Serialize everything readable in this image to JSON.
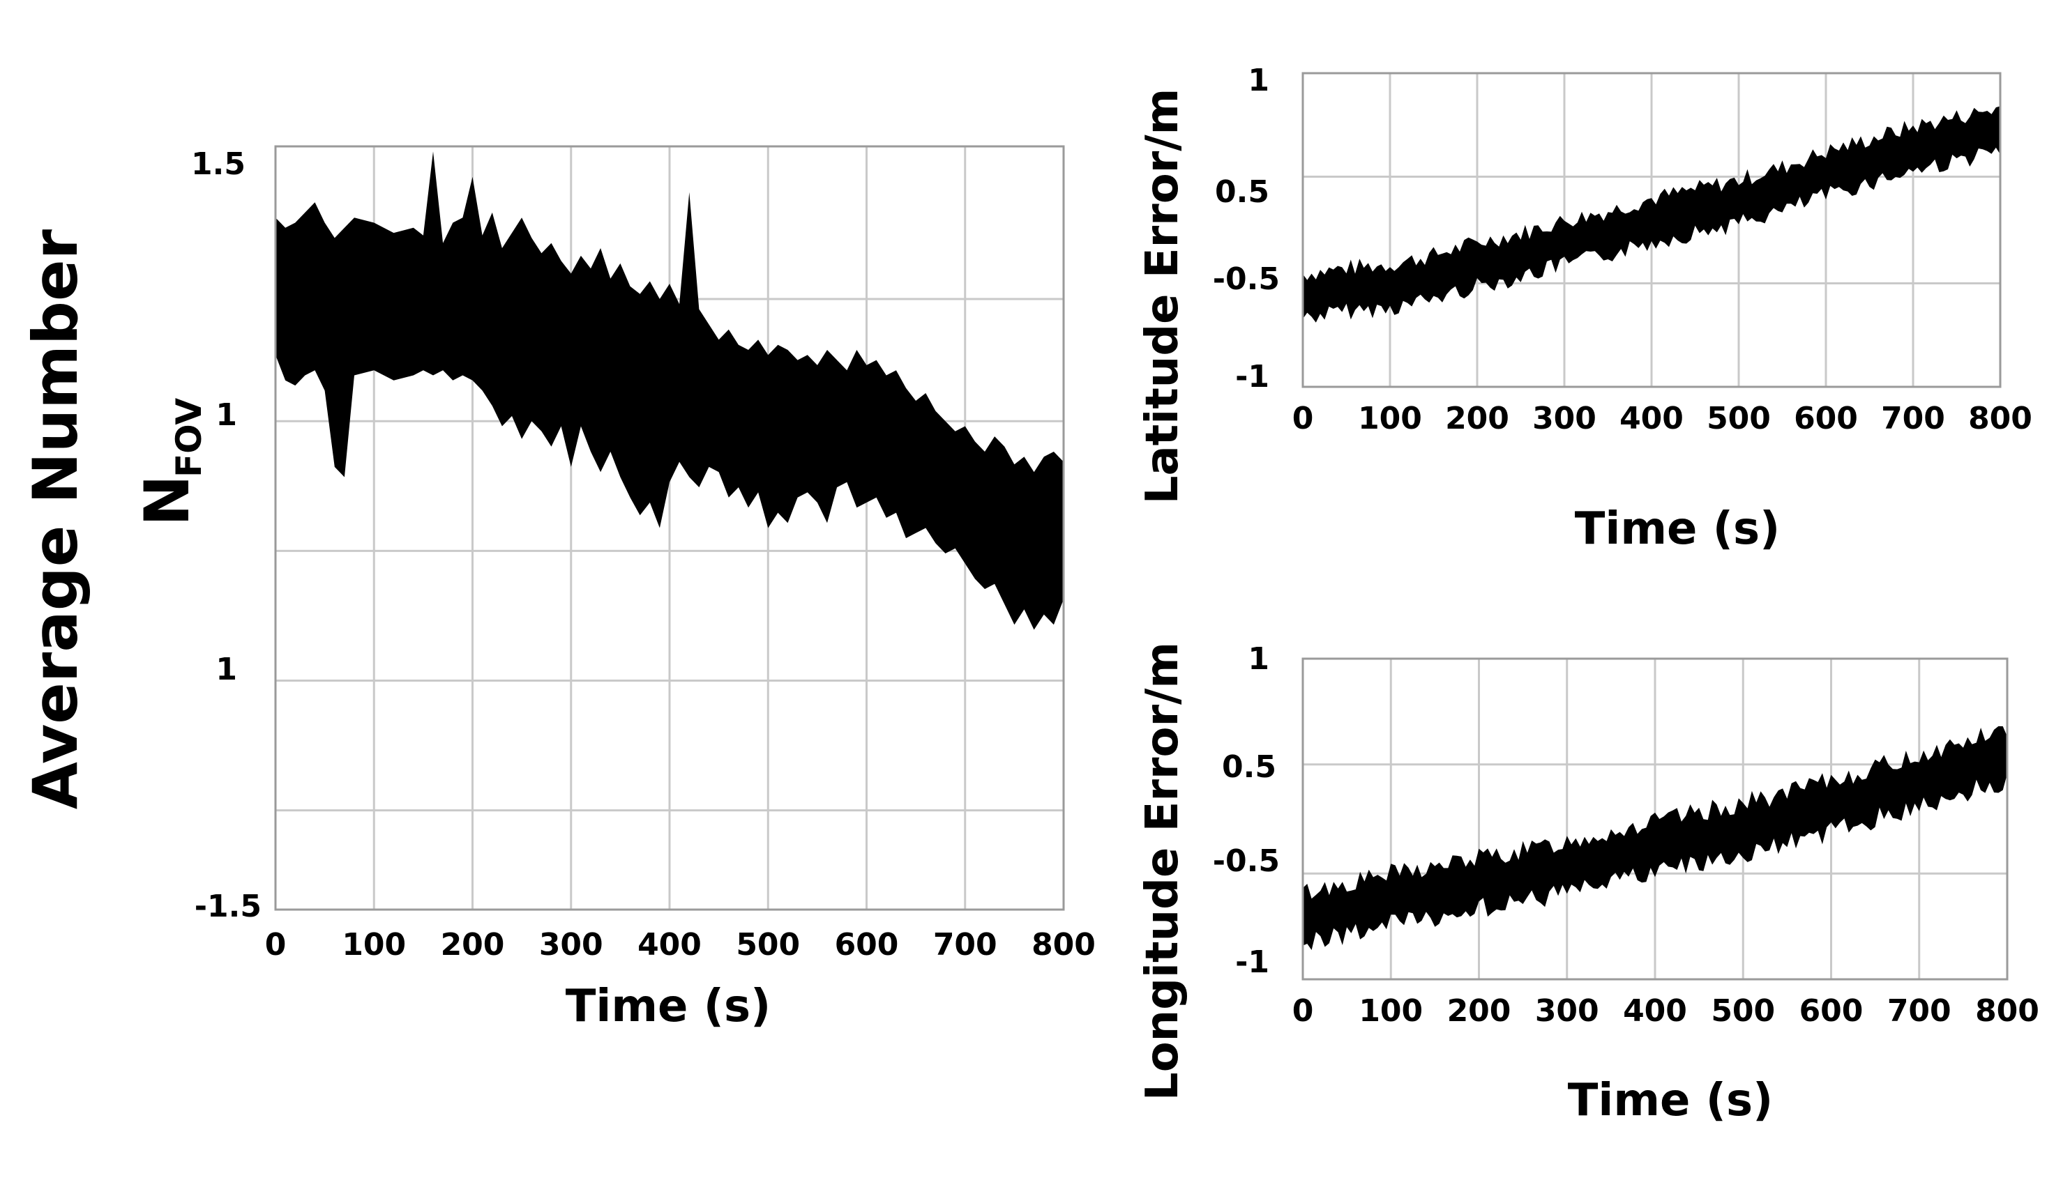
{
  "chart_data": [
    {
      "id": "nfov",
      "type": "area",
      "ylabel_line1": "Average Number",
      "ylabel_line2_main": "N",
      "ylabel_line2_sub": "FOV",
      "xlabel": "Time (s)",
      "xlim": [
        0,
        800
      ],
      "x_ticks": [
        "0",
        "100",
        "200",
        "300",
        "400",
        "500",
        "600",
        "700",
        "800"
      ],
      "y_tick_labels": [
        "1.5",
        "1",
        "1",
        "-1.5"
      ],
      "grid": true,
      "band_fill": "#000000",
      "x": [
        0,
        10,
        20,
        30,
        40,
        50,
        60,
        70,
        80,
        100,
        120,
        140,
        150,
        160,
        170,
        180,
        190,
        200,
        210,
        220,
        230,
        240,
        250,
        260,
        270,
        280,
        290,
        300,
        310,
        320,
        330,
        340,
        350,
        360,
        370,
        380,
        390,
        400,
        410,
        420,
        430,
        440,
        450,
        460,
        470,
        480,
        490,
        500,
        510,
        520,
        530,
        540,
        550,
        560,
        570,
        580,
        590,
        600,
        610,
        620,
        630,
        640,
        650,
        660,
        670,
        680,
        690,
        700,
        710,
        720,
        730,
        740,
        750,
        760,
        770,
        780,
        790,
        800
      ],
      "upper": [
        1.22,
        1.18,
        1.2,
        1.24,
        1.28,
        1.2,
        1.14,
        1.18,
        1.22,
        1.2,
        1.16,
        1.18,
        1.15,
        1.48,
        1.12,
        1.2,
        1.22,
        1.38,
        1.15,
        1.24,
        1.1,
        1.16,
        1.22,
        1.14,
        1.08,
        1.12,
        1.05,
        1.0,
        1.07,
        1.02,
        1.1,
        0.98,
        1.04,
        0.95,
        0.92,
        0.97,
        0.9,
        0.96,
        0.88,
        1.32,
        0.86,
        0.8,
        0.74,
        0.78,
        0.72,
        0.7,
        0.74,
        0.68,
        0.72,
        0.7,
        0.66,
        0.68,
        0.64,
        0.7,
        0.66,
        0.62,
        0.7,
        0.64,
        0.66,
        0.6,
        0.62,
        0.55,
        0.5,
        0.53,
        0.46,
        0.42,
        0.38,
        0.4,
        0.34,
        0.3,
        0.36,
        0.32,
        0.25,
        0.28,
        0.22,
        0.28,
        0.3,
        0.26
      ],
      "lower": [
        0.68,
        0.58,
        0.56,
        0.6,
        0.62,
        0.54,
        0.24,
        0.2,
        0.6,
        0.62,
        0.58,
        0.6,
        0.62,
        0.6,
        0.62,
        0.58,
        0.6,
        0.58,
        0.54,
        0.48,
        0.4,
        0.44,
        0.35,
        0.42,
        0.38,
        0.32,
        0.4,
        0.24,
        0.4,
        0.3,
        0.22,
        0.3,
        0.2,
        0.12,
        0.05,
        0.1,
        0.0,
        0.18,
        0.26,
        0.2,
        0.16,
        0.24,
        0.22,
        0.12,
        0.16,
        0.08,
        0.14,
        0.0,
        0.06,
        0.02,
        0.12,
        0.14,
        0.1,
        0.02,
        0.16,
        0.18,
        0.08,
        0.1,
        0.12,
        0.04,
        0.06,
        -0.04,
        -0.02,
        0.0,
        -0.06,
        -0.1,
        -0.08,
        -0.14,
        -0.2,
        -0.24,
        -0.22,
        -0.3,
        -0.38,
        -0.32,
        -0.4,
        -0.34,
        -0.38,
        -0.28
      ]
    },
    {
      "id": "latitude",
      "type": "line",
      "ylabel": "Latitude Error/m",
      "xlabel": "Time (s)",
      "xlim": [
        0,
        800
      ],
      "x_ticks": [
        "0",
        "100",
        "200",
        "300",
        "400",
        "500",
        "600",
        "700",
        "800"
      ],
      "y_tick_labels": [
        "1",
        "0.5",
        "-0.5",
        "-1"
      ],
      "grid": true,
      "x": [
        0,
        50,
        100,
        150,
        200,
        250,
        300,
        350,
        400,
        450,
        500,
        550,
        600,
        650,
        700,
        750,
        800
      ],
      "center": [
        -0.42,
        -0.38,
        -0.36,
        -0.3,
        -0.22,
        -0.16,
        -0.08,
        -0.02,
        0.06,
        0.12,
        0.18,
        0.26,
        0.36,
        0.44,
        0.52,
        0.58,
        0.64
      ],
      "spread": 0.14
    },
    {
      "id": "longitude",
      "type": "line",
      "ylabel": "Longitude Error/m",
      "xlabel": "Time (s)",
      "xlim": [
        0,
        800
      ],
      "x_ticks": [
        "0",
        "100",
        "200",
        "300",
        "400",
        "500",
        "600",
        "700",
        "800"
      ],
      "y_tick_labels": [
        "1",
        "0.5",
        "-0.5",
        "-1"
      ],
      "grid": true,
      "x": [
        0,
        50,
        100,
        150,
        200,
        250,
        300,
        350,
        400,
        450,
        500,
        550,
        600,
        650,
        700,
        750,
        800
      ],
      "center": [
        -0.62,
        -0.56,
        -0.5,
        -0.46,
        -0.4,
        -0.36,
        -0.3,
        -0.24,
        -0.18,
        -0.12,
        -0.06,
        0.0,
        0.08,
        0.16,
        0.24,
        0.32,
        0.4
      ],
      "spread": 0.16
    }
  ]
}
